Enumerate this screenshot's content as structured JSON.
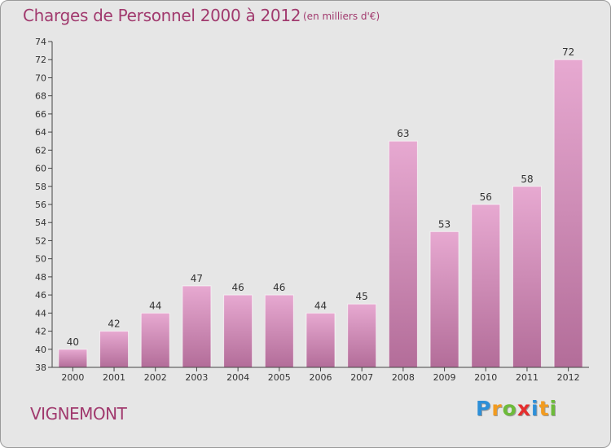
{
  "header": {
    "title": "Charges de Personnel 2000 à 2012",
    "subtitle": "(en milliers d'€)"
  },
  "footer": {
    "commune": "VIGNEMONT",
    "logo": {
      "letters": [
        "P",
        "r",
        "o",
        "x",
        "i",
        "t",
        "i"
      ],
      "colors": [
        "#2d8fd8",
        "#f29b1f",
        "#6dbb3a",
        "#e52e2e",
        "#2d8fd8",
        "#f29b1f",
        "#6dbb3a"
      ]
    }
  },
  "colors": {
    "bar_light": "#e7a9d1",
    "bar_dark": "#b36d99",
    "text_accent": "#a13a6e"
  },
  "chart_data": {
    "type": "bar",
    "categories": [
      "2000",
      "2001",
      "2002",
      "2003",
      "2004",
      "2005",
      "2006",
      "2007",
      "2008",
      "2009",
      "2010",
      "2011",
      "2012"
    ],
    "values": [
      40,
      42,
      44,
      47,
      46,
      46,
      44,
      45,
      63,
      53,
      56,
      58,
      72
    ],
    "title": "Charges de Personnel 2000 à 2012",
    "subtitle": "(en milliers d'€)",
    "xlabel": "",
    "ylabel": "",
    "ylim": [
      38,
      74
    ],
    "ytick_step": 2,
    "grid": false,
    "legend": "none"
  }
}
